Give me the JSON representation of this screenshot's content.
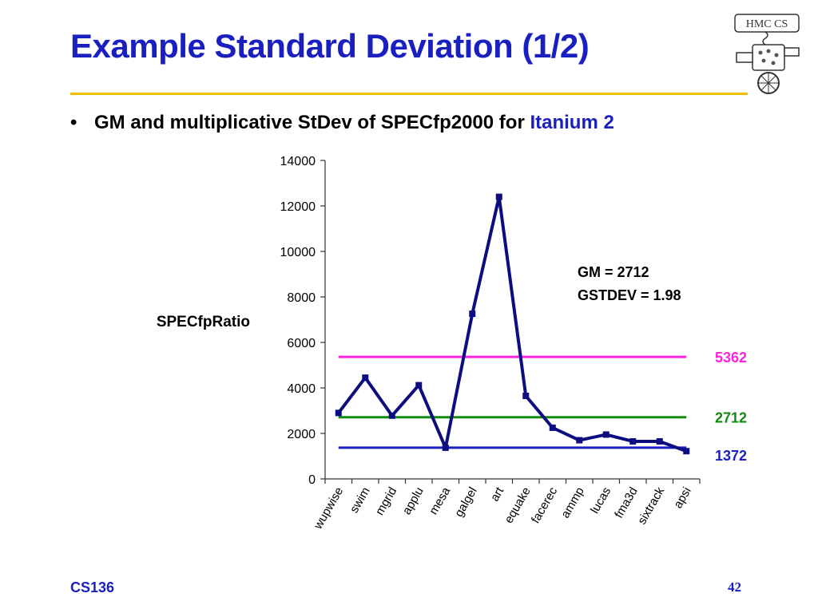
{
  "slide": {
    "title": "Example Standard Deviation (1/2)",
    "bullet_marker": "•",
    "bullet_text": "GM and multiplicative StDev of SPECfp2000 for ",
    "bullet_highlight": "Itanium 2",
    "footer_left": "CS136",
    "page_number": "42",
    "logo_text": "HMC CS",
    "colors": {
      "title": "#1a1fbf",
      "rule": "#f0c000"
    }
  },
  "chart_data": {
    "type": "line",
    "ylabel": "SPECfpRatio",
    "ylim": [
      0,
      14000
    ],
    "yticks": [
      0,
      2000,
      4000,
      6000,
      8000,
      10000,
      12000,
      14000
    ],
    "categories": [
      "wupwise",
      "swim",
      "mgrid",
      "applu",
      "mesa",
      "galgel",
      "art",
      "equake",
      "facerec",
      "ammp",
      "lucas",
      "fma3d",
      "sixtrack",
      "apsi"
    ],
    "series": [
      {
        "values": [
          2900,
          4450,
          2780,
          4120,
          1370,
          7260,
          12400,
          3650,
          2250,
          1700,
          1950,
          1650,
          1650,
          1220
        ],
        "color": "#0d0d80"
      }
    ],
    "reference_lines": [
      {
        "value": 5362,
        "label": "5362",
        "color": "#ff22dd"
      },
      {
        "value": 2712,
        "label": "2712",
        "color": "#108a10"
      },
      {
        "value": 1372,
        "label": "1372",
        "color": "#1a1fbf"
      }
    ],
    "annotations": [
      "GM = 2712",
      "GSTDEV = 1.98"
    ],
    "grid": false,
    "legend": "none"
  }
}
